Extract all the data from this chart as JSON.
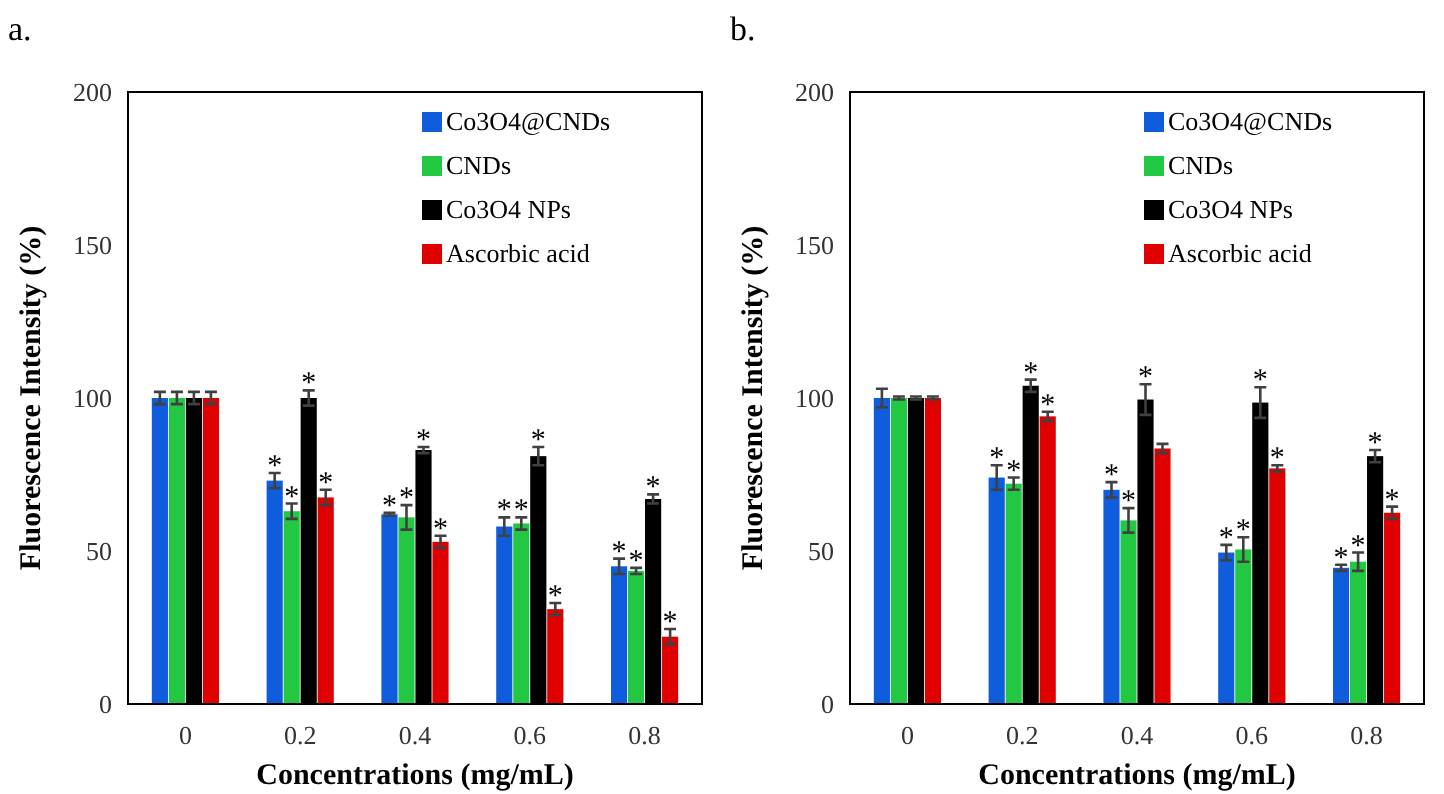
{
  "chart_data": [
    {
      "type": "bar",
      "title": "a.",
      "xlabel": "Concentrations (mg/mL)",
      "ylabel": "Fluorescence Intensity (%)",
      "categories": [
        "0",
        "0.2",
        "0.4",
        "0.6",
        "0.8"
      ],
      "ylim": [
        0,
        200
      ],
      "yticks": [
        0,
        50,
        100,
        150,
        200
      ],
      "grid": false,
      "legend": "top right",
      "series": [
        {
          "name": "Co3O4@CNDs",
          "color": "#0f5cdc",
          "values": [
            100,
            73,
            62,
            58,
            45
          ],
          "errors": [
            2,
            2.5,
            0.5,
            3,
            2.5
          ]
        },
        {
          "name": "CNDs",
          "color": "#22c842",
          "values": [
            100,
            63,
            61,
            59,
            43.5
          ],
          "errors": [
            2,
            2.5,
            4,
            2,
            1
          ]
        },
        {
          "name": "Co3O4 NPs",
          "color": "#000000",
          "values": [
            100,
            100,
            83,
            81,
            67
          ],
          "errors": [
            2,
            2.5,
            1,
            3,
            1.5
          ]
        },
        {
          "name": "Ascorbic acid",
          "color": "#e00000",
          "values": [
            100,
            67.5,
            53,
            31,
            22
          ],
          "errors": [
            2,
            2.5,
            2,
            2,
            2.5
          ]
        }
      ],
      "annotations": [
        {
          "text": "*",
          "x": "0.2",
          "y": 75.5
        },
        {
          "text": "*",
          "x": "0.2",
          "y": 65.5
        },
        {
          "text": "*",
          "x": "0.2",
          "y": 102.5
        },
        {
          "text": "*",
          "x": "0.2",
          "y": 70
        },
        {
          "text": "*",
          "x": "0.4",
          "y": 62.5
        },
        {
          "text": "*",
          "x": "0.4",
          "y": 65
        },
        {
          "text": "*",
          "x": "0.4",
          "y": 84
        },
        {
          "text": "*",
          "x": "0.4",
          "y": 55
        },
        {
          "text": "*",
          "x": "0.6",
          "y": 61
        },
        {
          "text": "*",
          "x": "0.6",
          "y": 61
        },
        {
          "text": "*",
          "x": "0.6",
          "y": 84
        },
        {
          "text": "*",
          "x": "0.6",
          "y": 33
        },
        {
          "text": "*",
          "x": "0.8",
          "y": 47.5
        },
        {
          "text": "*",
          "x": "0.8",
          "y": 44.5
        },
        {
          "text": "*",
          "x": "0.8",
          "y": 68.5
        },
        {
          "text": "*",
          "x": "0.8",
          "y": 24.5
        }
      ]
    },
    {
      "type": "bar",
      "title": "b.",
      "xlabel": "Concentrations (mg/mL)",
      "ylabel": "Fluorescence Intensity (%)",
      "categories": [
        "0",
        "0.2",
        "0.4",
        "0.6",
        "0.8"
      ],
      "ylim": [
        0,
        200
      ],
      "yticks": [
        0,
        50,
        100,
        150,
        200
      ],
      "grid": false,
      "legend": "top right",
      "series": [
        {
          "name": "Co3O4@CNDs",
          "color": "#0f5cdc",
          "values": [
            100,
            74,
            70,
            49.5,
            44.5
          ],
          "errors": [
            3,
            4,
            2.5,
            2.5,
            1
          ]
        },
        {
          "name": "CNDs",
          "color": "#22c842",
          "values": [
            100,
            72,
            60,
            50.5,
            46.5
          ],
          "errors": [
            0.5,
            2,
            4,
            4,
            3
          ]
        },
        {
          "name": "Co3O4 NPs",
          "color": "#000000",
          "values": [
            100,
            104,
            99.5,
            98.5,
            81
          ],
          "errors": [
            0.5,
            2,
            5,
            5,
            2
          ]
        },
        {
          "name": "Ascorbic acid",
          "color": "#e00000",
          "values": [
            100,
            94,
            83.5,
            77,
            62.5
          ],
          "errors": [
            0.5,
            1.5,
            1.5,
            1,
            2
          ]
        }
      ],
      "annotations": [
        {
          "text": "*",
          "x": "0.2",
          "y": 78
        },
        {
          "text": "*",
          "x": "0.2",
          "y": 74
        },
        {
          "text": "*",
          "x": "0.2",
          "y": 106
        },
        {
          "text": "*",
          "x": "0.2",
          "y": 95.5
        },
        {
          "text": "*",
          "x": "0.4",
          "y": 72.5
        },
        {
          "text": "*",
          "x": "0.4",
          "y": 64
        },
        {
          "text": "*",
          "x": "0.4",
          "y": 104.5
        },
        {
          "text": "*",
          "x": "0.6",
          "y": 52
        },
        {
          "text": "*",
          "x": "0.6",
          "y": 54.5
        },
        {
          "text": "*",
          "x": "0.6",
          "y": 103.5
        },
        {
          "text": "*",
          "x": "0.6",
          "y": 78
        },
        {
          "text": "*",
          "x": "0.8",
          "y": 45.5
        },
        {
          "text": "*",
          "x": "0.8",
          "y": 49.5
        },
        {
          "text": "*",
          "x": "0.8",
          "y": 83
        },
        {
          "text": "*",
          "x": "0.8",
          "y": 64.5
        }
      ]
    }
  ]
}
